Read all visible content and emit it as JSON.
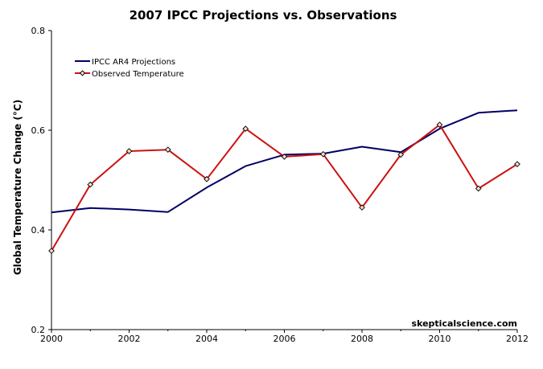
{
  "chart_data": {
    "type": "line",
    "title": "2007 IPCC Projections vs. Observations",
    "xlabel": "",
    "ylabel": "Global Temperature Change (°C)",
    "xlim": [
      2000,
      2012
    ],
    "ylim": [
      0.2,
      0.8
    ],
    "x_ticks": [
      2000,
      2002,
      2004,
      2006,
      2008,
      2010,
      2012
    ],
    "x_tick_labels": [
      "2000",
      "2002",
      "2004",
      "2006",
      "2008",
      "2010",
      "2012"
    ],
    "y_ticks": [
      0.2,
      0.4,
      0.6,
      0.8
    ],
    "y_tick_labels": [
      "0.2",
      "0.4",
      "0.6",
      "0.8"
    ],
    "legend_position": "top-left",
    "credit": "skepticalscience.com",
    "series": [
      {
        "name": "IPCC AR4 Projections",
        "color": "#000066",
        "marker": "none",
        "x": [
          2000,
          2001,
          2002,
          2003,
          2004,
          2005,
          2006,
          2007,
          2008,
          2009,
          2010,
          2011,
          2012
        ],
        "values": [
          0.435,
          0.444,
          0.441,
          0.436,
          0.485,
          0.528,
          0.551,
          0.553,
          0.567,
          0.556,
          0.603,
          0.635,
          0.64
        ]
      },
      {
        "name": "Observed Temperature",
        "color": "#cc1111",
        "marker": "diamond",
        "x": [
          2000,
          2001,
          2002,
          2003,
          2004,
          2005,
          2006,
          2007,
          2008,
          2009,
          2010,
          2011,
          2012
        ],
        "values": [
          0.358,
          0.491,
          0.558,
          0.561,
          0.502,
          0.603,
          0.547,
          0.552,
          0.445,
          0.551,
          0.611,
          0.483,
          0.532
        ]
      }
    ]
  }
}
